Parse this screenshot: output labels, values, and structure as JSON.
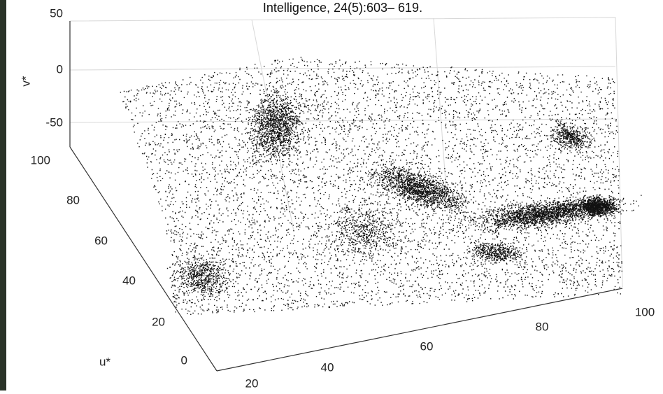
{
  "caption": "Intelligence, 24(5):603– 619.",
  "figure": {
    "v_axis": {
      "label": "v*",
      "ticks": [
        "50",
        "0",
        "-50"
      ]
    },
    "u_axis": {
      "label": "u*",
      "ticks": [
        "100",
        "80",
        "60",
        "40",
        "20",
        "0"
      ]
    },
    "l_axis": {
      "ticks": [
        "20",
        "40",
        "60",
        "80",
        "100"
      ]
    }
  }
}
